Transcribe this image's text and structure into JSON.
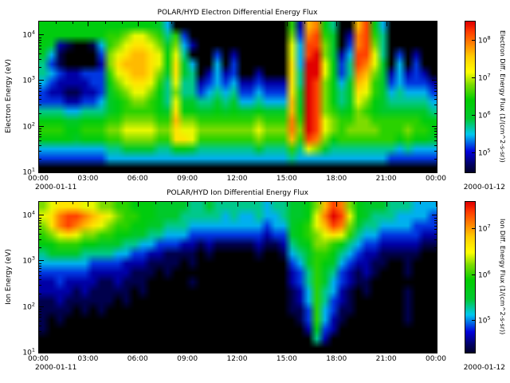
{
  "figure": {
    "background": "#ffffff",
    "plot_background": "#000000",
    "axis_color": "#000000"
  },
  "colormap": [
    {
      "t": 0.0,
      "c": "#000000"
    },
    {
      "t": 0.09,
      "c": "#000066"
    },
    {
      "t": 0.17,
      "c": "#0000dc"
    },
    {
      "t": 0.28,
      "c": "#00c8f0"
    },
    {
      "t": 0.38,
      "c": "#00c832"
    },
    {
      "t": 0.5,
      "c": "#00cd00"
    },
    {
      "t": 0.6,
      "c": "#7ddc00"
    },
    {
      "t": 0.68,
      "c": "#ffff00"
    },
    {
      "t": 0.78,
      "c": "#ffcc00"
    },
    {
      "t": 0.86,
      "c": "#ff8400"
    },
    {
      "t": 0.94,
      "c": "#ff3c00"
    },
    {
      "t": 1.0,
      "c": "#e10000"
    }
  ],
  "chart_data": [
    {
      "type": "heatmap",
      "title": "POLAR/HYD  Electron Differential Energy Flux",
      "ylabel": "Electron Energy (eV)",
      "colorbar_label": "Electron Diff. Energy Flux (1/(cm^2-s-sr))",
      "x_tick_labels": [
        "00:00",
        "03:00",
        "06:00",
        "09:00",
        "12:00",
        "15:00",
        "18:00",
        "21:00",
        "00:00"
      ],
      "x_hours_range": [
        0,
        24
      ],
      "date_left": "2000-01-11",
      "date_right": "2000-01-12",
      "y_scale": "log",
      "y_range_ev": [
        10,
        20000
      ],
      "y_tick_exponents": [
        4,
        3,
        2,
        1
      ],
      "flux_tick_exponents": [
        8,
        7,
        6,
        5
      ],
      "flux_range_exp": [
        4.5,
        8.5
      ],
      "grid_time_bins": 48,
      "grid_energy_bins": 16,
      "value_encoding": "hex digit 0-15 per cell; 0=black (below threshold), 15=max flux (red); rows ordered high energy (top) to low energy (bottom); columns 30-min bins 00:00-24:00",
      "grid_hex_rows_top_to_bottom": [
        "77777777777777640000000000000082cd7500ce74000000",
        "77777777889aa9858300000000000093de8602de85000000",
        "7621001489abba9694200000000000a4ee9603de95000000",
        "641000039abccba7a5000302000000a4ef9624eea5030200",
        "531000029bcccba7b6400403000000b4ffa735eda6040300",
        "543223338abccb96b6502423002000b5ffa735dc96242320",
        "4322223379abba85a5523434223222b5fe9746cb86343332",
        "32211223689aa97595534545334333b6fe9756ba86454443",
        "3332233467899875a6655656445444c6fe9756a976555554",
        "5554455567888876b7766767667666c7fe98679876666665",
        "777667778899998 8c9988888889888d8fea9889988888877",
        "8887788899aaaa99baa9999999a999d9fea9899998889887",
        "7777677788999988bba88888889888c8ed97888888878776",
        "44444444556666557765555555655585a965555555545444",
        "333333334444444444444444444444544444444444333333",
        "000000000000000000000000000000000000000000000000"
      ]
    },
    {
      "type": "heatmap",
      "title": "POLAR/HYD  Ion Differential Energy Flux",
      "ylabel": "Ion Energy (eV)",
      "colorbar_label": "Ion Diff. Energy Flux (1/(cm^2-s-sr))",
      "x_tick_labels": [
        "00:00",
        "03:00",
        "06:00",
        "09:00",
        "12:00",
        "15:00",
        "18:00",
        "21:00",
        "00:00"
      ],
      "x_hours_range": [
        0,
        24
      ],
      "date_left": "2000-01-11",
      "date_right": "2000-01-12",
      "y_scale": "log",
      "y_range_ev": [
        10,
        20000
      ],
      "y_tick_exponents": [
        4,
        3,
        2,
        1
      ],
      "flux_tick_exponents": [
        7,
        6,
        5
      ],
      "flux_range_exp": [
        4.3,
        7.6
      ],
      "grid_time_bins": 48,
      "grid_energy_bins": 16,
      "value_encoding": "hex digit 0-15 per cell; 0=black (below threshold), 15=max flux (red); rows ordered high energy (top) to low energy (bottom); columns 30-min bins 00:00-24:00",
      "grid_hex_rows_top_to_bottom": [
        "9abbbaa998877766665565555554556679ced97666555444",
        "abdeedcba988776665555545445445667adfea7655544443",
        "9bdedcba9887766555444444444344678aced96554444333",
        "89aba99887766554443333333332336789aba85443333322",
        "778887766655443332212111112112567998754332222211",
        "566665555443322111101000001001456887543221111100",
        "444444333322211110100000000000346876432211001000",
        "333333222221110100000000000000235865321210001000",
        "223222211211100000100000000000235864321100000000",
        "222212111110100000000000000000124854210100001000",
        "112111111010000000000000000000124853210000001000",
        "111101010000000000000000000000113843110000001000",
        "101000000000000000000000000000013842100000001000",
        "100000000000000000000000000000002732000000000000",
        "000000000000000000000000000000000520000000000000",
        "000000000000000000000000000000000000000000000000"
      ]
    }
  ]
}
